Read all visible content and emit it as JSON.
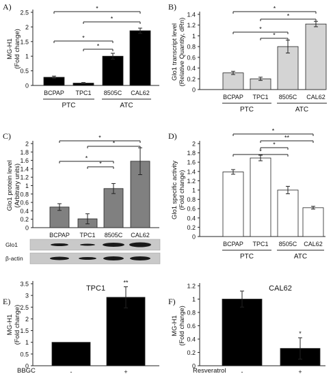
{
  "chart_data": [
    {
      "panel": "A)",
      "type": "bar",
      "ylabel": "MG-H1\n(Fold change)",
      "ylim": [
        0,
        2.5
      ],
      "yticks": [
        "0",
        "0.5",
        "1",
        "1.5",
        "2",
        "2.5"
      ],
      "categories": [
        "BCPAP",
        "TPC1",
        "8505C",
        "CAL62"
      ],
      "values": [
        0.28,
        0.08,
        1.0,
        1.87
      ],
      "errors": [
        0.04,
        0.02,
        0.1,
        0.09
      ],
      "bar_color": "#000000",
      "groups": [
        {
          "label": "PTC",
          "categories": [
            "BCPAP",
            "TPC1"
          ]
        },
        {
          "label": "ATC",
          "categories": [
            "8505C",
            "CAL62"
          ]
        }
      ],
      "significance": [
        {
          "from": "BCPAP",
          "to": "CAL62",
          "label": "*"
        },
        {
          "from": "TPC1",
          "to": "CAL62",
          "label": "*"
        },
        {
          "from": "BCPAP",
          "to": "8505C",
          "label": "*"
        },
        {
          "from": "TPC1",
          "to": "8505C",
          "label": "*"
        }
      ]
    },
    {
      "panel": "B)",
      "type": "bar",
      "ylabel": "Glo1 transcript level\n(Relative Quantity, dRn)",
      "ylim": [
        0,
        1.4
      ],
      "yticks": [
        "0",
        "0.2",
        "0.4",
        "0.6",
        "0.8",
        "1",
        "1.2",
        "1.4"
      ],
      "categories": [
        "BCPAP",
        "TPC1",
        "8505C",
        "CAL62"
      ],
      "values": [
        0.31,
        0.2,
        0.8,
        1.22
      ],
      "errors": [
        0.03,
        0.03,
        0.12,
        0.05
      ],
      "bar_color": "#d4d4d4",
      "groups": [
        {
          "label": "PTC",
          "categories": [
            "BCPAP",
            "TPC1"
          ]
        },
        {
          "label": "ATC",
          "categories": [
            "8505C",
            "CAL62"
          ]
        }
      ],
      "significance": [
        {
          "from": "BCPAP",
          "to": "CAL62",
          "label": "*"
        },
        {
          "from": "TPC1",
          "to": "CAL62",
          "label": "*"
        },
        {
          "from": "BCPAP",
          "to": "8505C",
          "label": "*"
        },
        {
          "from": "TPC1",
          "to": "8505C",
          "label": "*"
        }
      ]
    },
    {
      "panel": "C)",
      "type": "bar",
      "ylabel": "Glo1 protein level\n(Arbitrary units)",
      "ylim": [
        0,
        2
      ],
      "yticks": [
        "0",
        "0.2",
        "0.4",
        "0.6",
        "0.8",
        "1",
        "1.2",
        "1.4",
        "1.6",
        "1.8",
        "2"
      ],
      "categories": [
        "BCPAP",
        "TPC1",
        "8505C",
        "CAL62"
      ],
      "values": [
        0.49,
        0.21,
        0.93,
        1.58
      ],
      "errors": [
        0.08,
        0.12,
        0.12,
        0.32
      ],
      "bar_color": "#808080",
      "blot_labels": [
        "Glo1",
        "β-actin"
      ],
      "significance": [
        {
          "from": "BCPAP",
          "to": "CAL62",
          "label": "*"
        },
        {
          "from": "TPC1",
          "to": "CAL62",
          "label": "*"
        },
        {
          "from": "BCPAP",
          "to": "8505C",
          "label": "*"
        },
        {
          "from": "TPC1",
          "to": "8505C",
          "label": "*"
        }
      ]
    },
    {
      "panel": "D)",
      "type": "bar",
      "ylabel": "Glo1 specific activity\n(Fold change)",
      "ylim": [
        0,
        2
      ],
      "yticks": [
        "0",
        "0.2",
        "0.4",
        "0.6",
        "0.8",
        "1",
        "1.2",
        "1.4",
        "1.6",
        "1.8",
        "2"
      ],
      "categories": [
        "BCPAP",
        "TPC1",
        "8505C",
        "CAL62"
      ],
      "values": [
        1.39,
        1.69,
        1.0,
        0.62
      ],
      "errors": [
        0.05,
        0.06,
        0.08,
        0.03
      ],
      "bar_color": "#ffffff",
      "groups": [
        {
          "label": "PTC",
          "categories": [
            "BCPAP",
            "TPC1"
          ]
        },
        {
          "label": "ATC",
          "categories": [
            "8505C",
            "CAL62"
          ]
        }
      ],
      "significance": [
        {
          "from": "BCPAP",
          "to": "CAL62",
          "label": "*"
        },
        {
          "from": "TPC1",
          "to": "CAL62",
          "label": "**"
        },
        {
          "from": "TPC1",
          "to": "8505C",
          "label": "*"
        },
        {
          "from": "BCPAP",
          "to": "8505C",
          "label": "*"
        }
      ]
    },
    {
      "panel": "E)",
      "type": "bar",
      "title": "TPC1",
      "ylabel": "MG-H1\n(Fold change)",
      "ylim": [
        0,
        3.5
      ],
      "yticks": [
        "0",
        "0.5",
        "1",
        "1.5",
        "2",
        "2.5",
        "3",
        "3.5"
      ],
      "xlabel": "BBGC",
      "categories": [
        "-",
        "+"
      ],
      "values": [
        1.0,
        2.92
      ],
      "errors": [
        0,
        0.45
      ],
      "bar_color": "#000000",
      "significance_marks": [
        "",
        "**"
      ]
    },
    {
      "panel": "F)",
      "type": "bar",
      "title": "CAL62",
      "ylabel": "MG-H1\n(Fold change)",
      "ylim": [
        0,
        1.2
      ],
      "yticks": [
        "0",
        "0.2",
        "0.4",
        "0.6",
        "0.8",
        "1",
        "1.2"
      ],
      "xlabel": "Resveratrol",
      "categories": [
        "-",
        "+"
      ],
      "values": [
        1.0,
        0.26
      ],
      "errors": [
        0.12,
        0.16
      ],
      "bar_color": "#000000",
      "significance_marks": [
        "",
        "*"
      ]
    }
  ]
}
